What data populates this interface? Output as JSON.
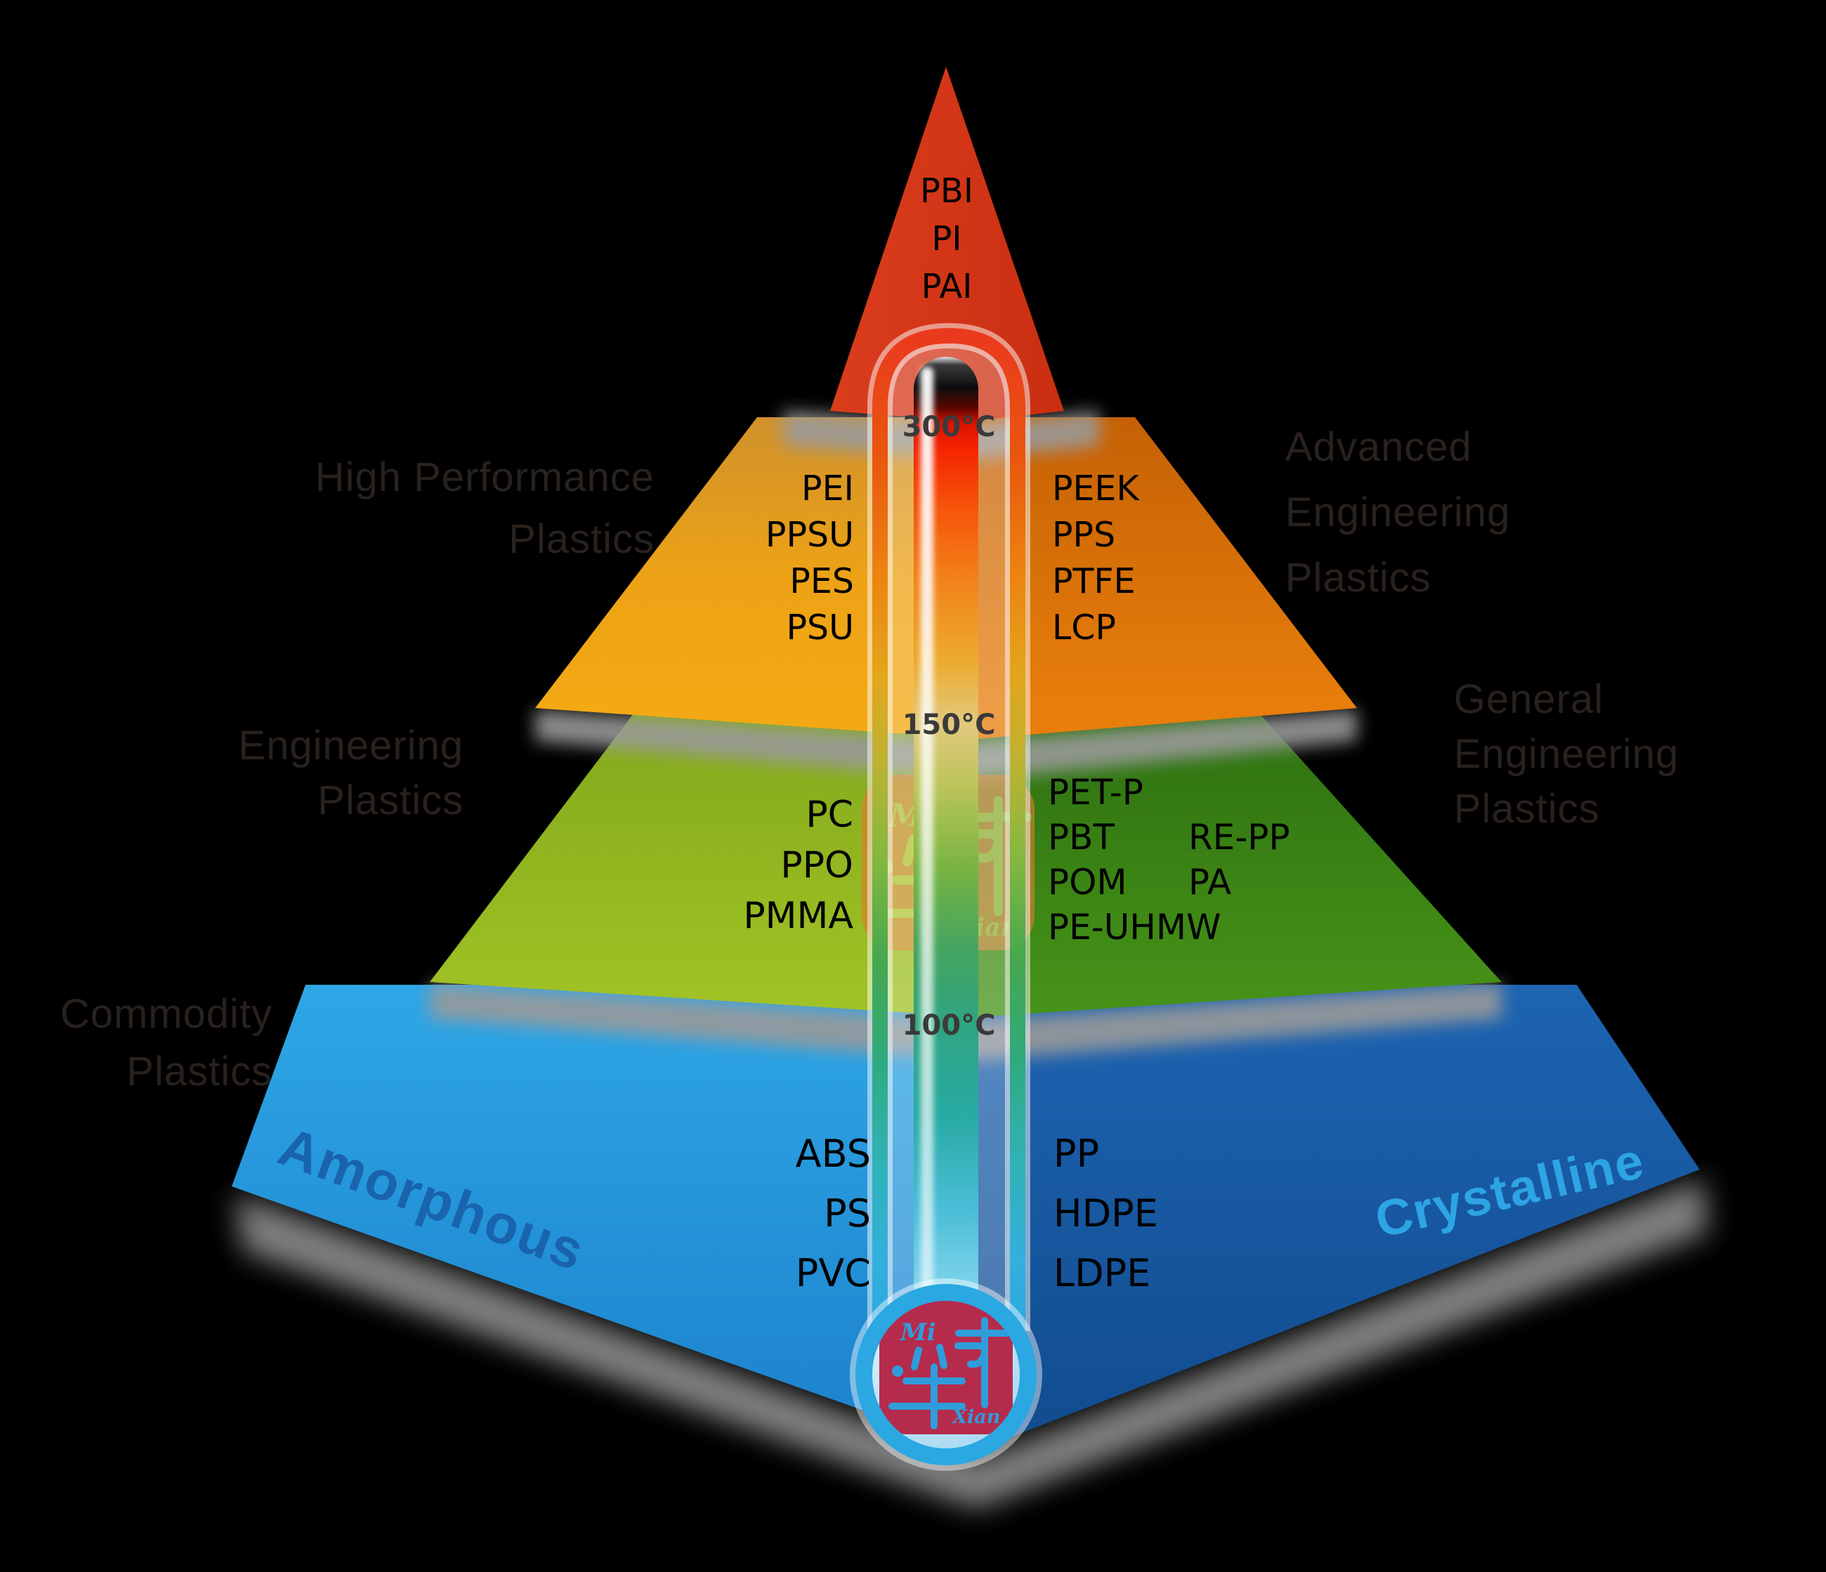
{
  "tiers": {
    "top": {
      "name": "high-performance-apex",
      "materials_center": [
        "PBI",
        "PI",
        "PAI"
      ],
      "color": "#d23414"
    },
    "tier2": {
      "left_materials": [
        "PEI",
        "PPSU",
        "PES",
        "PSU"
      ],
      "right_materials": [
        "PEEK",
        "PPS",
        "PTFE",
        "LCP"
      ],
      "color_left": "#eda216",
      "color_right": "#d86c06"
    },
    "tier3": {
      "left_materials": [
        "PC",
        "PPO",
        "PMMA"
      ],
      "right_materials": [
        "PET-P",
        "PBT",
        "POM",
        "PE-UHMW"
      ],
      "right_materials_col2": [
        "RE-PP",
        "PA"
      ],
      "color_left": "#96b922",
      "color_right": "#3a8315"
    },
    "tier4": {
      "left_materials": [
        "ABS",
        "PS",
        "PVC"
      ],
      "right_materials": [
        "PP",
        "HDPE",
        "LDPE"
      ],
      "color_left": "#2598dd",
      "color_right": "#1a5ba7"
    }
  },
  "side_labels": {
    "high_performance": [
      "High Performance",
      "Plastics"
    ],
    "engineering": [
      "Engineering",
      "Plastics"
    ],
    "commodity": [
      "Commodity",
      "Plastics"
    ],
    "advanced_engineering": [
      "Advanced",
      "Engineering",
      "Plastics"
    ],
    "general_engineering": [
      "General",
      "Engineering",
      "Plastics"
    ]
  },
  "morphology_labels": {
    "amorphous": "Amorphous",
    "crystalline": "Crystalline"
  },
  "thermometer": {
    "scale": [
      "300°C",
      "150°C",
      "100°C"
    ],
    "gradient_top_color": "#f52400",
    "gradient_bottom_color": "#abe5f8",
    "bulb_ring_color": "#2ba7e1"
  },
  "watermark": {
    "mi": "Mi",
    "xian": "Xian",
    "stamp_color": "#b52b4c",
    "glyph_color": "#2f9ddb"
  }
}
